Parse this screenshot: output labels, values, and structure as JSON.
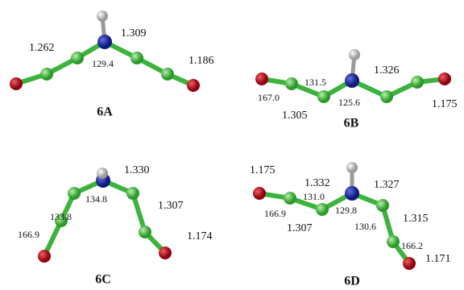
{
  "structures": [
    {
      "name": "6A",
      "labels": [
        "1.262",
        "1.309",
        "129.4",
        "1.186"
      ]
    },
    {
      "name": "6B",
      "labels": [
        "167.0",
        "131.5",
        "1.326",
        "125.6",
        "1.305",
        "1.175"
      ]
    },
    {
      "name": "6C",
      "labels": [
        "1.330",
        "134.8",
        "133.8",
        "166.9",
        "1.307",
        "1.174"
      ]
    },
    {
      "name": "6D",
      "labels": [
        "1.175",
        "1.332",
        "131.0",
        "1.327",
        "129.8",
        "166.9",
        "1.307",
        "130.6",
        "1.315",
        "166.2",
        "1.171"
      ]
    }
  ]
}
